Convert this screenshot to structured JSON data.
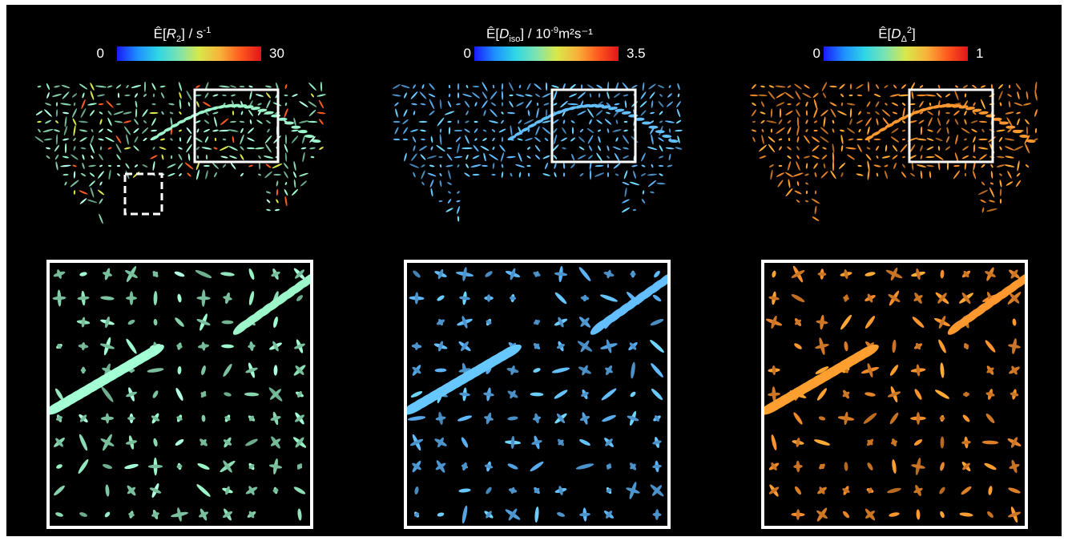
{
  "colors": {
    "background": "#000000",
    "frame": "#ffffff",
    "r2_glyph_tone": "#8ee0b8",
    "diso_glyph_tone": "#5aaef0",
    "ddelta_glyph_tone": "#f08a2a"
  },
  "colormaps": {
    "jet": [
      "#1a1aff",
      "#1e90ff",
      "#2fd6e6",
      "#7ce3b0",
      "#d9e84a",
      "#f7b23a",
      "#ff5a1e",
      "#e0141a"
    ]
  },
  "panels": [
    {
      "id": "r2",
      "title_parts": {
        "prefix": "Ê[",
        "symbol": "R",
        "subscript": "2",
        "after_sub": "] / s",
        "superscript": "-1",
        "tail": ""
      },
      "colorbar": {
        "min_label": "0",
        "max_label": "30"
      },
      "glyph_tone": "#8ee0b8",
      "has_dashed_roi": true
    },
    {
      "id": "diso",
      "title_parts": {
        "prefix": "Ê[",
        "symbol": "D",
        "subscript": "iso",
        "after_sub": "] / 10",
        "superscript": "-9",
        "tail": "m²s⁻¹"
      },
      "colorbar": {
        "min_label": "0",
        "max_label": "3.5"
      },
      "glyph_tone": "#5aaef0",
      "has_dashed_roi": false
    },
    {
      "id": "ddelta",
      "title_parts": {
        "prefix": "Ê[",
        "symbol": "D",
        "subscript": "Δ",
        "after_sub": "",
        "superscript": "2",
        "tail": "]"
      },
      "colorbar": {
        "min_label": "0",
        "max_label": "1"
      },
      "glyph_tone": "#f08a2a",
      "has_dashed_roi": false
    }
  ]
}
